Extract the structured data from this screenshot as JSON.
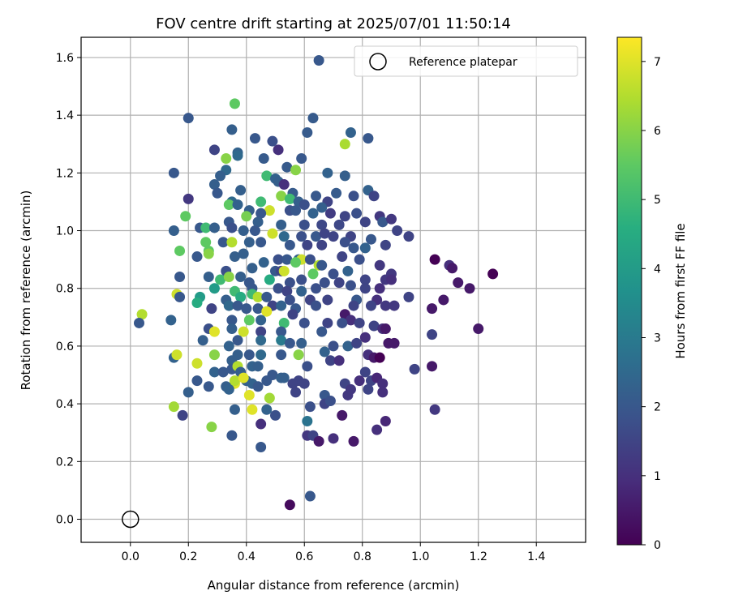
{
  "chart_data": {
    "type": "scatter",
    "title": "FOV centre drift starting at 2025/07/01 11:50:14",
    "xlabel": "Angular distance from reference (arcmin)",
    "ylabel": "Rotation from reference (arcmin)",
    "xlim": [
      -0.17,
      1.57
    ],
    "ylim": [
      -0.08,
      1.67
    ],
    "xticks": [
      "0.0",
      "0.2",
      "0.4",
      "0.6",
      "0.8",
      "1.0",
      "1.2",
      "1.4"
    ],
    "yticks": [
      "0.0",
      "0.2",
      "0.4",
      "0.6",
      "0.8",
      "1.0",
      "1.2",
      "1.4",
      "1.6"
    ],
    "grid": true,
    "legend": {
      "position": "top-right",
      "entries": [
        "Reference platepar"
      ]
    },
    "reference_point": {
      "x": 0.0,
      "y": 0.0
    },
    "colorbar": {
      "label": "Hours from first FF file",
      "range": [
        0,
        7.35
      ],
      "ticks": [
        "0",
        "1",
        "2",
        "3",
        "4",
        "5",
        "6",
        "7"
      ],
      "colormap": "viridis"
    },
    "points": [
      [
        0.65,
        1.59,
        2.0
      ],
      [
        0.36,
        1.44,
        5.5
      ],
      [
        0.2,
        1.39,
        2.0
      ],
      [
        0.63,
        1.39,
        2.1
      ],
      [
        0.35,
        1.35,
        2.2
      ],
      [
        0.76,
        1.34,
        2.3
      ],
      [
        0.82,
        1.32,
        2.0
      ],
      [
        0.43,
        1.32,
        2.0
      ],
      [
        0.49,
        1.31,
        1.8
      ],
      [
        0.61,
        1.34,
        2.1
      ],
      [
        0.74,
        1.3,
        6.4
      ],
      [
        0.29,
        1.28,
        1.5
      ],
      [
        0.37,
        1.27,
        2.3
      ],
      [
        0.51,
        1.28,
        1.0
      ],
      [
        0.37,
        1.26,
        2.5
      ],
      [
        0.33,
        1.25,
        6.0
      ],
      [
        0.46,
        1.25,
        2.1
      ],
      [
        0.59,
        1.25,
        2.0
      ],
      [
        0.54,
        1.22,
        2.1
      ],
      [
        0.57,
        1.21,
        6.0
      ],
      [
        0.15,
        1.2,
        2.0
      ],
      [
        0.68,
        1.2,
        2.3
      ],
      [
        0.74,
        1.19,
        2.2
      ],
      [
        0.33,
        1.21,
        2.5
      ],
      [
        0.31,
        1.19,
        2.2
      ],
      [
        0.47,
        1.19,
        5.0
      ],
      [
        0.5,
        1.18,
        2.3
      ],
      [
        0.51,
        1.17,
        2.2
      ],
      [
        0.29,
        1.16,
        2.2
      ],
      [
        0.53,
        1.16,
        1.0
      ],
      [
        0.3,
        1.13,
        2.0
      ],
      [
        0.38,
        1.14,
        2.2
      ],
      [
        0.82,
        1.14,
        2.3
      ],
      [
        0.56,
        1.13,
        2.1
      ],
      [
        0.52,
        1.12,
        6.0
      ],
      [
        0.55,
        1.11,
        5.0
      ],
      [
        0.64,
        1.12,
        2.0
      ],
      [
        0.71,
        1.13,
        2.1
      ],
      [
        0.77,
        1.12,
        1.8
      ],
      [
        0.84,
        1.12,
        1.5
      ],
      [
        0.2,
        1.11,
        1.2
      ],
      [
        0.35,
        1.1,
        2.5
      ],
      [
        0.45,
        1.1,
        5.0
      ],
      [
        0.58,
        1.1,
        2.2
      ],
      [
        0.34,
        1.09,
        5.5
      ],
      [
        0.37,
        1.09,
        2.3
      ],
      [
        0.6,
        1.09,
        1.8
      ],
      [
        0.68,
        1.1,
        1.5
      ],
      [
        0.41,
        1.07,
        2.2
      ],
      [
        0.48,
        1.07,
        6.8
      ],
      [
        0.55,
        1.07,
        1.8
      ],
      [
        0.57,
        1.07,
        2.0
      ],
      [
        0.45,
        1.06,
        2.0
      ],
      [
        0.63,
        1.06,
        2.3
      ],
      [
        0.69,
        1.06,
        1.3
      ],
      [
        0.78,
        1.06,
        1.8
      ],
      [
        0.74,
        1.05,
        1.5
      ],
      [
        0.86,
        1.05,
        1.2
      ],
      [
        0.19,
        1.05,
        5.5
      ],
      [
        0.34,
        1.03,
        2.0
      ],
      [
        0.44,
        1.03,
        2.2
      ],
      [
        0.52,
        1.02,
        2.2
      ],
      [
        0.6,
        1.02,
        1.8
      ],
      [
        0.66,
        1.02,
        1.6
      ],
      [
        0.72,
        1.02,
        1.6
      ],
      [
        0.81,
        1.03,
        1.5
      ],
      [
        0.87,
        1.03,
        2.0
      ],
      [
        0.9,
        1.04,
        1.2
      ],
      [
        0.24,
        1.01,
        2.0
      ],
      [
        0.26,
        1.01,
        5.0
      ],
      [
        0.29,
        1.01,
        2.2
      ],
      [
        0.35,
        1.01,
        1.8
      ],
      [
        0.39,
        1.0,
        2.2
      ],
      [
        0.43,
        1.0,
        2.0
      ],
      [
        0.15,
        1.0,
        2.2
      ],
      [
        0.49,
        0.99,
        6.8
      ],
      [
        0.53,
        0.98,
        2.5
      ],
      [
        0.59,
        0.98,
        1.8
      ],
      [
        0.64,
        0.98,
        2.0
      ],
      [
        0.67,
        0.99,
        1.5
      ],
      [
        0.7,
        0.98,
        1.5
      ],
      [
        0.76,
        0.98,
        1.5
      ],
      [
        0.83,
        0.97,
        2.0
      ],
      [
        0.96,
        0.98,
        1.5
      ],
      [
        0.26,
        0.96,
        5.5
      ],
      [
        0.32,
        0.96,
        2.0
      ],
      [
        0.35,
        0.96,
        6.5
      ],
      [
        0.41,
        0.96,
        2.2
      ],
      [
        0.45,
        0.96,
        2.0
      ],
      [
        0.55,
        0.95,
        2.0
      ],
      [
        0.61,
        0.95,
        1.5
      ],
      [
        0.66,
        0.95,
        1.5
      ],
      [
        0.74,
        0.96,
        1.8
      ],
      [
        0.77,
        0.94,
        2.0
      ],
      [
        0.81,
        0.94,
        2.3
      ],
      [
        0.88,
        0.95,
        1.5
      ],
      [
        0.17,
        0.93,
        5.5
      ],
      [
        0.27,
        0.93,
        5.5
      ],
      [
        0.39,
        0.92,
        2.2
      ],
      [
        0.23,
        0.91,
        2.0
      ],
      [
        0.27,
        0.92,
        6.0
      ],
      [
        0.36,
        0.91,
        2.2
      ],
      [
        0.51,
        0.9,
        1.8
      ],
      [
        0.54,
        0.9,
        2.0
      ],
      [
        0.58,
        0.9,
        2.3
      ],
      [
        0.59,
        0.9,
        6.8
      ],
      [
        0.62,
        0.9,
        1.8
      ],
      [
        0.73,
        0.91,
        1.5
      ],
      [
        0.79,
        0.9,
        1.8
      ],
      [
        1.05,
        0.9,
        0.0
      ],
      [
        0.46,
        0.89,
        2.3
      ],
      [
        0.57,
        0.89,
        5.5
      ],
      [
        0.65,
        0.88,
        6.5
      ],
      [
        0.86,
        0.88,
        1.2
      ],
      [
        1.1,
        0.88,
        1.0
      ],
      [
        0.33,
        0.86,
        1.8
      ],
      [
        0.42,
        0.87,
        2.2
      ],
      [
        0.5,
        0.86,
        2.0
      ],
      [
        0.52,
        0.86,
        1.5
      ],
      [
        0.53,
        0.86,
        6.8
      ],
      [
        0.63,
        0.85,
        5.5
      ],
      [
        0.66,
        0.88,
        2.0
      ],
      [
        0.7,
        0.85,
        1.8
      ],
      [
        0.75,
        0.86,
        2.3
      ],
      [
        0.9,
        0.85,
        1.2
      ],
      [
        1.11,
        0.87,
        0.5
      ],
      [
        1.25,
        0.85,
        0.0
      ],
      [
        0.17,
        0.84,
        2.0
      ],
      [
        0.27,
        0.84,
        2.2
      ],
      [
        0.31,
        0.83,
        5.0
      ],
      [
        0.34,
        0.84,
        6.0
      ],
      [
        0.38,
        0.84,
        2.2
      ],
      [
        0.41,
        0.82,
        2.0
      ],
      [
        0.48,
        0.83,
        4.5
      ],
      [
        0.55,
        0.82,
        1.8
      ],
      [
        0.59,
        0.83,
        1.8
      ],
      [
        0.67,
        0.82,
        1.8
      ],
      [
        0.72,
        0.82,
        1.5
      ],
      [
        0.81,
        0.83,
        1.5
      ],
      [
        0.88,
        0.83,
        1.2
      ],
      [
        0.9,
        0.83,
        1.0
      ],
      [
        1.13,
        0.82,
        0.5
      ],
      [
        0.29,
        0.8,
        4.0
      ],
      [
        0.36,
        0.79,
        5.0
      ],
      [
        0.42,
        0.8,
        2.0
      ],
      [
        0.51,
        0.8,
        1.8
      ],
      [
        0.54,
        0.79,
        1.5
      ],
      [
        0.59,
        0.79,
        2.3
      ],
      [
        0.64,
        0.8,
        1.8
      ],
      [
        0.76,
        0.81,
        1.8
      ],
      [
        0.81,
        0.8,
        1.5
      ],
      [
        0.86,
        0.8,
        1.0
      ],
      [
        1.17,
        0.8,
        0.5
      ],
      [
        0.16,
        0.78,
        6.8
      ],
      [
        0.17,
        0.77,
        2.0
      ],
      [
        0.24,
        0.77,
        4.0
      ],
      [
        0.33,
        0.76,
        2.2
      ],
      [
        0.38,
        0.77,
        4.5
      ],
      [
        0.42,
        0.78,
        5.0
      ],
      [
        0.44,
        0.77,
        6.5
      ],
      [
        0.47,
        0.77,
        2.0
      ],
      [
        0.55,
        0.76,
        1.8
      ],
      [
        0.62,
        0.76,
        1.5
      ],
      [
        0.68,
        0.76,
        1.5
      ],
      [
        0.78,
        0.76,
        2.0
      ],
      [
        0.85,
        0.76,
        1.0
      ],
      [
        0.96,
        0.77,
        1.5
      ],
      [
        1.08,
        0.76,
        0.5
      ],
      [
        0.23,
        0.75,
        4.5
      ],
      [
        0.28,
        0.73,
        1.5
      ],
      [
        0.34,
        0.74,
        2.5
      ],
      [
        0.37,
        0.74,
        2.0
      ],
      [
        0.4,
        0.73,
        2.0
      ],
      [
        0.44,
        0.73,
        2.0
      ],
      [
        0.49,
        0.74,
        1.5
      ],
      [
        0.52,
        0.74,
        2.3
      ],
      [
        0.57,
        0.73,
        2.0
      ],
      [
        0.64,
        0.74,
        1.8
      ],
      [
        0.77,
        0.74,
        1.5
      ],
      [
        0.83,
        0.74,
        1.5
      ],
      [
        0.88,
        0.74,
        1.2
      ],
      [
        0.91,
        0.74,
        1.2
      ],
      [
        1.04,
        0.73,
        0.5
      ],
      [
        0.04,
        0.71,
        6.5
      ],
      [
        0.47,
        0.72,
        7.0
      ],
      [
        0.56,
        0.71,
        1.5
      ],
      [
        0.74,
        0.71,
        0.5
      ],
      [
        0.76,
        0.69,
        1.0
      ],
      [
        0.03,
        0.68,
        2.0
      ],
      [
        0.14,
        0.69,
        2.3
      ],
      [
        0.35,
        0.69,
        2.0
      ],
      [
        0.41,
        0.69,
        5.5
      ],
      [
        0.45,
        0.69,
        2.3
      ],
      [
        0.53,
        0.68,
        5.0
      ],
      [
        0.6,
        0.68,
        1.8
      ],
      [
        0.68,
        0.68,
        1.5
      ],
      [
        0.73,
        0.68,
        1.8
      ],
      [
        0.79,
        0.68,
        1.5
      ],
      [
        0.84,
        0.67,
        1.5
      ],
      [
        0.87,
        0.66,
        1.0
      ],
      [
        0.88,
        0.66,
        0.5
      ],
      [
        0.35,
        0.66,
        2.2
      ],
      [
        0.27,
        0.66,
        1.8
      ],
      [
        0.29,
        0.65,
        7.0
      ],
      [
        0.39,
        0.65,
        6.8
      ],
      [
        0.45,
        0.65,
        1.5
      ],
      [
        0.52,
        0.65,
        2.0
      ],
      [
        0.66,
        0.65,
        2.0
      ],
      [
        0.81,
        0.63,
        1.0
      ],
      [
        1.04,
        0.64,
        1.5
      ],
      [
        1.2,
        0.66,
        0.5
      ],
      [
        0.25,
        0.62,
        2.2
      ],
      [
        0.37,
        0.62,
        2.0
      ],
      [
        0.45,
        0.62,
        2.5
      ],
      [
        0.52,
        0.62,
        3.0
      ],
      [
        0.55,
        0.61,
        2.0
      ],
      [
        0.59,
        0.61,
        2.2
      ],
      [
        0.7,
        0.6,
        1.8
      ],
      [
        0.75,
        0.6,
        2.3
      ],
      [
        0.78,
        0.61,
        1.5
      ],
      [
        0.89,
        0.61,
        0.5
      ],
      [
        0.91,
        0.61,
        0.5
      ],
      [
        0.34,
        0.6,
        2.3
      ],
      [
        0.41,
        0.57,
        2.0
      ],
      [
        0.35,
        0.55,
        2.2
      ],
      [
        0.15,
        0.56,
        2.3
      ],
      [
        0.16,
        0.57,
        6.8
      ],
      [
        0.29,
        0.57,
        6.0
      ],
      [
        0.37,
        0.57,
        2.2
      ],
      [
        0.45,
        0.57,
        2.5
      ],
      [
        0.52,
        0.57,
        2.0
      ],
      [
        0.58,
        0.57,
        6.0
      ],
      [
        0.67,
        0.58,
        2.3
      ],
      [
        0.82,
        0.57,
        1.0
      ],
      [
        0.84,
        0.56,
        0.5
      ],
      [
        0.86,
        0.56,
        0.0
      ],
      [
        0.23,
        0.54,
        6.8
      ],
      [
        0.35,
        0.52,
        2.0
      ],
      [
        0.37,
        0.53,
        6.5
      ],
      [
        0.42,
        0.53,
        2.3
      ],
      [
        0.44,
        0.53,
        2.2
      ],
      [
        0.61,
        0.53,
        1.8
      ],
      [
        0.69,
        0.55,
        1.5
      ],
      [
        0.72,
        0.55,
        1.0
      ],
      [
        0.81,
        0.51,
        1.5
      ],
      [
        0.98,
        0.52,
        1.5
      ],
      [
        1.04,
        0.53,
        0.5
      ],
      [
        0.29,
        0.51,
        2.3
      ],
      [
        0.32,
        0.51,
        2.0
      ],
      [
        0.38,
        0.51,
        2.2
      ],
      [
        0.49,
        0.5,
        2.0
      ],
      [
        0.53,
        0.49,
        2.2
      ],
      [
        0.4,
        0.48,
        2.2
      ],
      [
        0.36,
        0.47,
        7.0
      ],
      [
        0.36,
        0.48,
        6.5
      ],
      [
        0.39,
        0.49,
        7.0
      ],
      [
        0.47,
        0.48,
        2.0
      ],
      [
        0.52,
        0.49,
        2.2
      ],
      [
        0.58,
        0.48,
        1.5
      ],
      [
        0.23,
        0.48,
        2.0
      ],
      [
        0.27,
        0.46,
        2.0
      ],
      [
        0.33,
        0.46,
        2.2
      ],
      [
        0.42,
        0.47,
        2.3
      ],
      [
        0.44,
        0.46,
        2.0
      ],
      [
        0.56,
        0.47,
        1.5
      ],
      [
        0.6,
        0.47,
        1.5
      ],
      [
        0.74,
        0.47,
        1.5
      ],
      [
        0.79,
        0.48,
        1.0
      ],
      [
        0.83,
        0.48,
        1.5
      ],
      [
        0.85,
        0.49,
        0.8
      ],
      [
        0.87,
        0.47,
        1.0
      ],
      [
        0.2,
        0.44,
        2.2
      ],
      [
        0.34,
        0.45,
        2.3
      ],
      [
        0.41,
        0.43,
        7.0
      ],
      [
        0.48,
        0.42,
        6.3
      ],
      [
        0.57,
        0.44,
        1.5
      ],
      [
        0.67,
        0.43,
        2.0
      ],
      [
        0.75,
        0.43,
        1.2
      ],
      [
        0.76,
        0.45,
        1.2
      ],
      [
        0.82,
        0.45,
        1.5
      ],
      [
        0.87,
        0.44,
        1.0
      ],
      [
        0.15,
        0.39,
        6.3
      ],
      [
        0.36,
        0.38,
        2.2
      ],
      [
        0.42,
        0.38,
        7.0
      ],
      [
        0.47,
        0.38,
        2.3
      ],
      [
        0.62,
        0.39,
        1.8
      ],
      [
        0.67,
        0.4,
        1.5
      ],
      [
        0.69,
        0.41,
        1.8
      ],
      [
        1.05,
        0.38,
        1.2
      ],
      [
        0.18,
        0.36,
        1.5
      ],
      [
        0.5,
        0.36,
        1.8
      ],
      [
        0.73,
        0.36,
        0.5
      ],
      [
        0.88,
        0.34,
        0.8
      ],
      [
        0.61,
        0.34,
        2.8
      ],
      [
        0.45,
        0.33,
        1.0
      ],
      [
        0.85,
        0.31,
        1.0
      ],
      [
        0.28,
        0.32,
        6.0
      ],
      [
        0.35,
        0.29,
        2.0
      ],
      [
        0.61,
        0.29,
        1.2
      ],
      [
        0.63,
        0.29,
        1.5
      ],
      [
        0.7,
        0.28,
        1.0
      ],
      [
        0.65,
        0.27,
        0.5
      ],
      [
        0.77,
        0.27,
        0.5
      ],
      [
        0.45,
        0.25,
        2.0
      ],
      [
        0.62,
        0.08,
        2.0
      ],
      [
        0.55,
        0.05,
        0.2
      ],
      [
        0.92,
        1.0,
        1.5
      ],
      [
        0.4,
        1.05,
        5.8
      ],
      [
        0.66,
        1.08,
        2.2
      ]
    ]
  }
}
